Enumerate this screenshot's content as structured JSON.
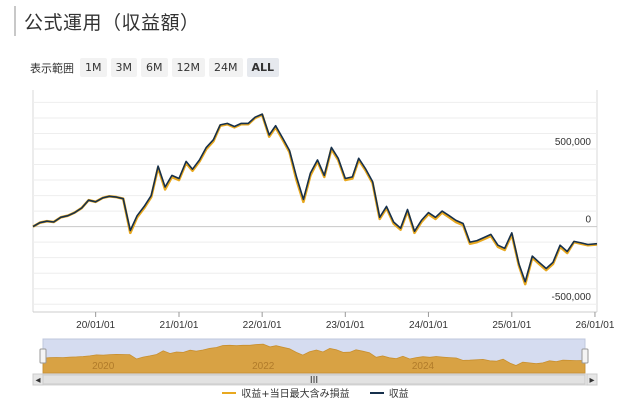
{
  "title": "公式運用（収益額）",
  "range_selector": {
    "label": "表示範囲",
    "buttons": [
      "1M",
      "3M",
      "6M",
      "12M",
      "24M",
      "ALL"
    ],
    "selected": "ALL"
  },
  "colors": {
    "primary_line": "#16304c",
    "secondary_line": "#e8a81f",
    "navigator_fill": "#d8a244",
    "navigator_bg": "#d5dcf0"
  },
  "chart_data": {
    "type": "line",
    "x_start": "2019-04-01",
    "x_end": "2026-01-10",
    "ylim": [
      -550000,
      880000
    ],
    "y_ticks": [
      500000,
      0,
      -500000
    ],
    "y_tick_labels": [
      "500,000",
      "0",
      "-500,000"
    ],
    "x_ticks": [
      "2020-01-01",
      "2021-01-01",
      "2022-01-01",
      "2023-01-01",
      "2024-01-01",
      "2025-01-01",
      "2026-01-01"
    ],
    "x_tick_labels": [
      "20/01/01",
      "21/01/01",
      "22/01/01",
      "23/01/01",
      "24/01/01",
      "25/01/01",
      "26/01/01"
    ],
    "series": [
      {
        "name": "収益+当日最大含み損益",
        "points": [
          [
            "2019-04-01",
            0
          ],
          [
            "2019-05-01",
            25000
          ],
          [
            "2019-06-01",
            35000
          ],
          [
            "2019-07-01",
            30000
          ],
          [
            "2019-08-01",
            60000
          ],
          [
            "2019-09-01",
            70000
          ],
          [
            "2019-10-01",
            90000
          ],
          [
            "2019-11-01",
            120000
          ],
          [
            "2019-12-01",
            170000
          ],
          [
            "2020-01-01",
            160000
          ],
          [
            "2020-02-01",
            185000
          ],
          [
            "2020-03-01",
            195000
          ],
          [
            "2020-04-01",
            190000
          ],
          [
            "2020-05-01",
            180000
          ],
          [
            "2020-06-01",
            -40000
          ],
          [
            "2020-07-01",
            60000
          ],
          [
            "2020-08-01",
            120000
          ],
          [
            "2020-09-01",
            190000
          ],
          [
            "2020-10-01",
            380000
          ],
          [
            "2020-11-01",
            240000
          ],
          [
            "2020-12-01",
            320000
          ],
          [
            "2021-01-01",
            300000
          ],
          [
            "2021-02-01",
            410000
          ],
          [
            "2021-03-01",
            360000
          ],
          [
            "2021-04-01",
            420000
          ],
          [
            "2021-05-01",
            500000
          ],
          [
            "2021-06-01",
            550000
          ],
          [
            "2021-07-01",
            650000
          ],
          [
            "2021-08-01",
            660000
          ],
          [
            "2021-09-01",
            640000
          ],
          [
            "2021-10-01",
            660000
          ],
          [
            "2021-11-01",
            660000
          ],
          [
            "2021-12-01",
            700000
          ],
          [
            "2022-01-01",
            720000
          ],
          [
            "2022-02-01",
            580000
          ],
          [
            "2022-03-01",
            640000
          ],
          [
            "2022-04-01",
            560000
          ],
          [
            "2022-05-01",
            480000
          ],
          [
            "2022-06-01",
            300000
          ],
          [
            "2022-07-01",
            160000
          ],
          [
            "2022-08-01",
            330000
          ],
          [
            "2022-09-01",
            420000
          ],
          [
            "2022-10-01",
            320000
          ],
          [
            "2022-11-01",
            500000
          ],
          [
            "2022-12-01",
            430000
          ],
          [
            "2023-01-01",
            300000
          ],
          [
            "2023-02-01",
            310000
          ],
          [
            "2023-03-01",
            430000
          ],
          [
            "2023-04-01",
            360000
          ],
          [
            "2023-05-01",
            280000
          ],
          [
            "2023-06-01",
            50000
          ],
          [
            "2023-07-01",
            120000
          ],
          [
            "2023-08-01",
            20000
          ],
          [
            "2023-09-01",
            -20000
          ],
          [
            "2023-10-01",
            100000
          ],
          [
            "2023-11-01",
            -40000
          ],
          [
            "2023-12-01",
            30000
          ],
          [
            "2024-01-01",
            80000
          ],
          [
            "2024-02-01",
            50000
          ],
          [
            "2024-03-01",
            90000
          ],
          [
            "2024-04-01",
            60000
          ],
          [
            "2024-05-01",
            30000
          ],
          [
            "2024-06-01",
            10000
          ],
          [
            "2024-07-01",
            -110000
          ],
          [
            "2024-08-01",
            -100000
          ],
          [
            "2024-09-01",
            -80000
          ],
          [
            "2024-10-01",
            -60000
          ],
          [
            "2024-11-01",
            -130000
          ],
          [
            "2024-12-01",
            -150000
          ],
          [
            "2025-01-01",
            -50000
          ],
          [
            "2025-02-01",
            -250000
          ],
          [
            "2025-03-01",
            -370000
          ],
          [
            "2025-04-01",
            -200000
          ],
          [
            "2025-05-01",
            -240000
          ],
          [
            "2025-06-01",
            -280000
          ],
          [
            "2025-07-01",
            -240000
          ],
          [
            "2025-08-01",
            -130000
          ],
          [
            "2025-09-01",
            -170000
          ],
          [
            "2025-10-01",
            -100000
          ],
          [
            "2025-11-01",
            -110000
          ],
          [
            "2025-12-01",
            -120000
          ],
          [
            "2026-01-10",
            -115000
          ]
        ]
      },
      {
        "name": "収益",
        "points": [
          [
            "2019-04-01",
            0
          ],
          [
            "2019-05-01",
            25000
          ],
          [
            "2019-06-01",
            35000
          ],
          [
            "2019-07-01",
            30000
          ],
          [
            "2019-08-01",
            60000
          ],
          [
            "2019-09-01",
            70000
          ],
          [
            "2019-10-01",
            90000
          ],
          [
            "2019-11-01",
            120000
          ],
          [
            "2019-12-01",
            170000
          ],
          [
            "2020-01-01",
            160000
          ],
          [
            "2020-02-01",
            185000
          ],
          [
            "2020-03-01",
            195000
          ],
          [
            "2020-04-01",
            190000
          ],
          [
            "2020-05-01",
            180000
          ],
          [
            "2020-06-01",
            -25000
          ],
          [
            "2020-07-01",
            70000
          ],
          [
            "2020-08-01",
            130000
          ],
          [
            "2020-09-01",
            200000
          ],
          [
            "2020-10-01",
            390000
          ],
          [
            "2020-11-01",
            255000
          ],
          [
            "2020-12-01",
            330000
          ],
          [
            "2021-01-01",
            310000
          ],
          [
            "2021-02-01",
            420000
          ],
          [
            "2021-03-01",
            370000
          ],
          [
            "2021-04-01",
            430000
          ],
          [
            "2021-05-01",
            510000
          ],
          [
            "2021-06-01",
            560000
          ],
          [
            "2021-07-01",
            655000
          ],
          [
            "2021-08-01",
            665000
          ],
          [
            "2021-09-01",
            645000
          ],
          [
            "2021-10-01",
            665000
          ],
          [
            "2021-11-01",
            665000
          ],
          [
            "2021-12-01",
            705000
          ],
          [
            "2022-01-01",
            725000
          ],
          [
            "2022-02-01",
            590000
          ],
          [
            "2022-03-01",
            650000
          ],
          [
            "2022-04-01",
            570000
          ],
          [
            "2022-05-01",
            490000
          ],
          [
            "2022-06-01",
            320000
          ],
          [
            "2022-07-01",
            175000
          ],
          [
            "2022-08-01",
            345000
          ],
          [
            "2022-09-01",
            430000
          ],
          [
            "2022-10-01",
            330000
          ],
          [
            "2022-11-01",
            510000
          ],
          [
            "2022-12-01",
            440000
          ],
          [
            "2023-01-01",
            310000
          ],
          [
            "2023-02-01",
            320000
          ],
          [
            "2023-03-01",
            440000
          ],
          [
            "2023-04-01",
            370000
          ],
          [
            "2023-05-01",
            290000
          ],
          [
            "2023-06-01",
            60000
          ],
          [
            "2023-07-01",
            130000
          ],
          [
            "2023-08-01",
            30000
          ],
          [
            "2023-09-01",
            -10000
          ],
          [
            "2023-10-01",
            110000
          ],
          [
            "2023-11-01",
            -30000
          ],
          [
            "2023-12-01",
            40000
          ],
          [
            "2024-01-01",
            90000
          ],
          [
            "2024-02-01",
            60000
          ],
          [
            "2024-03-01",
            100000
          ],
          [
            "2024-04-01",
            70000
          ],
          [
            "2024-05-01",
            40000
          ],
          [
            "2024-06-01",
            20000
          ],
          [
            "2024-07-01",
            -100000
          ],
          [
            "2024-08-01",
            -90000
          ],
          [
            "2024-09-01",
            -70000
          ],
          [
            "2024-10-01",
            -50000
          ],
          [
            "2024-11-01",
            -120000
          ],
          [
            "2024-12-01",
            -140000
          ],
          [
            "2025-01-01",
            -40000
          ],
          [
            "2025-02-01",
            -240000
          ],
          [
            "2025-03-01",
            -355000
          ],
          [
            "2025-04-01",
            -190000
          ],
          [
            "2025-05-01",
            -230000
          ],
          [
            "2025-06-01",
            -270000
          ],
          [
            "2025-07-01",
            -230000
          ],
          [
            "2025-08-01",
            -120000
          ],
          [
            "2025-09-01",
            -160000
          ],
          [
            "2025-10-01",
            -95000
          ],
          [
            "2025-11-01",
            -105000
          ],
          [
            "2025-12-01",
            -115000
          ],
          [
            "2026-01-10",
            -110000
          ]
        ]
      }
    ],
    "navigator": {
      "year_labels": [
        "2020",
        "2022",
        "2024"
      ],
      "year_positions": [
        "2020-01-01",
        "2022-01-01",
        "2024-01-01"
      ]
    }
  },
  "scroll_handle_label": "III",
  "legend": [
    {
      "label": "収益+当日最大含み損益",
      "color": "#e8a81f"
    },
    {
      "label": "収益",
      "color": "#16304c"
    }
  ]
}
